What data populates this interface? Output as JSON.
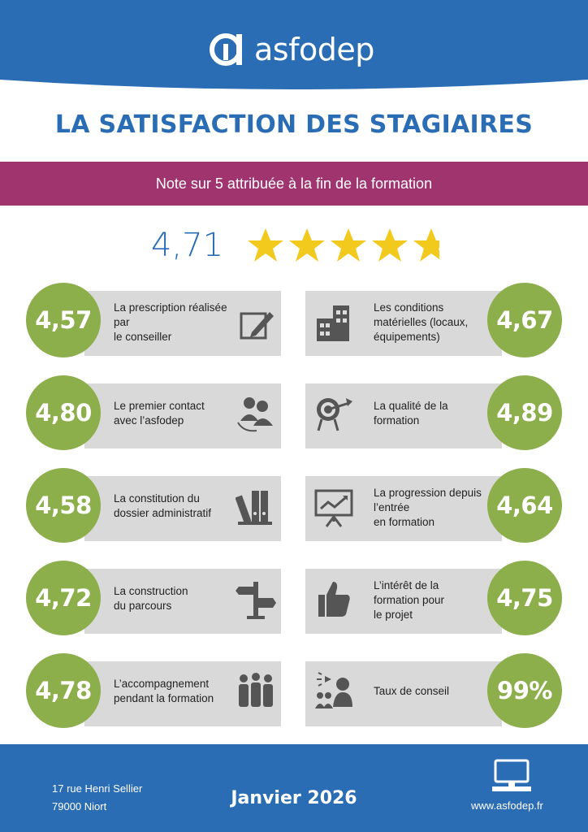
{
  "brand": {
    "name": "asfodep"
  },
  "title": "LA SATISFACTION DES STAGIAIRES",
  "subtitle": "Note sur 5 attribuée à la fin de la formation",
  "overall": {
    "score": "4,71",
    "rating": 4.71,
    "max": 5
  },
  "colors": {
    "blue": "#2a6db5",
    "magenta": "#a0346e",
    "green": "#8cae4b",
    "grey": "#d9d9d9",
    "star": "#f2c91d"
  },
  "left": [
    {
      "score": "4,57",
      "lines": [
        "La prescription réalisée",
        "par",
        "le conseiller"
      ],
      "icon": "edit-icon"
    },
    {
      "score": "4,80",
      "lines": [
        "Le premier contact",
        "avec l’asfodep"
      ],
      "icon": "contact-people-icon"
    },
    {
      "score": "4,58",
      "lines": [
        "La constitution du",
        "dossier administratif"
      ],
      "icon": "binders-icon"
    },
    {
      "score": "4,72",
      "lines": [
        "La construction",
        "du parcours"
      ],
      "icon": "signpost-icon"
    },
    {
      "score": "4,78",
      "lines": [
        "L’accompagnement",
        "pendant la  formation"
      ],
      "icon": "team-icon"
    }
  ],
  "right": [
    {
      "score": "4,67",
      "lines": [
        "Les conditions",
        "matérielles (locaux,",
        "équipements)"
      ],
      "icon": "building-icon"
    },
    {
      "score": "4,89",
      "lines": [
        "La qualité de la",
        "formation"
      ],
      "icon": "target-icon"
    },
    {
      "score": "4,64",
      "lines": [
        "La progression depuis",
        "l’entrée",
        "en formation"
      ],
      "icon": "progress-board-icon"
    },
    {
      "score": "4,75",
      "lines": [
        "L’intérêt de la",
        "formation pour",
        "le projet"
      ],
      "icon": "thumbs-up-icon"
    },
    {
      "score": "99%",
      "lines": [
        "Taux de conseil"
      ],
      "icon": "advice-icon"
    }
  ],
  "footer": {
    "address_line1": "17 rue Henri Sellier",
    "address_line2": "79000 Niort",
    "date": "Janvier 2026",
    "website": "www.asfodep.fr"
  }
}
